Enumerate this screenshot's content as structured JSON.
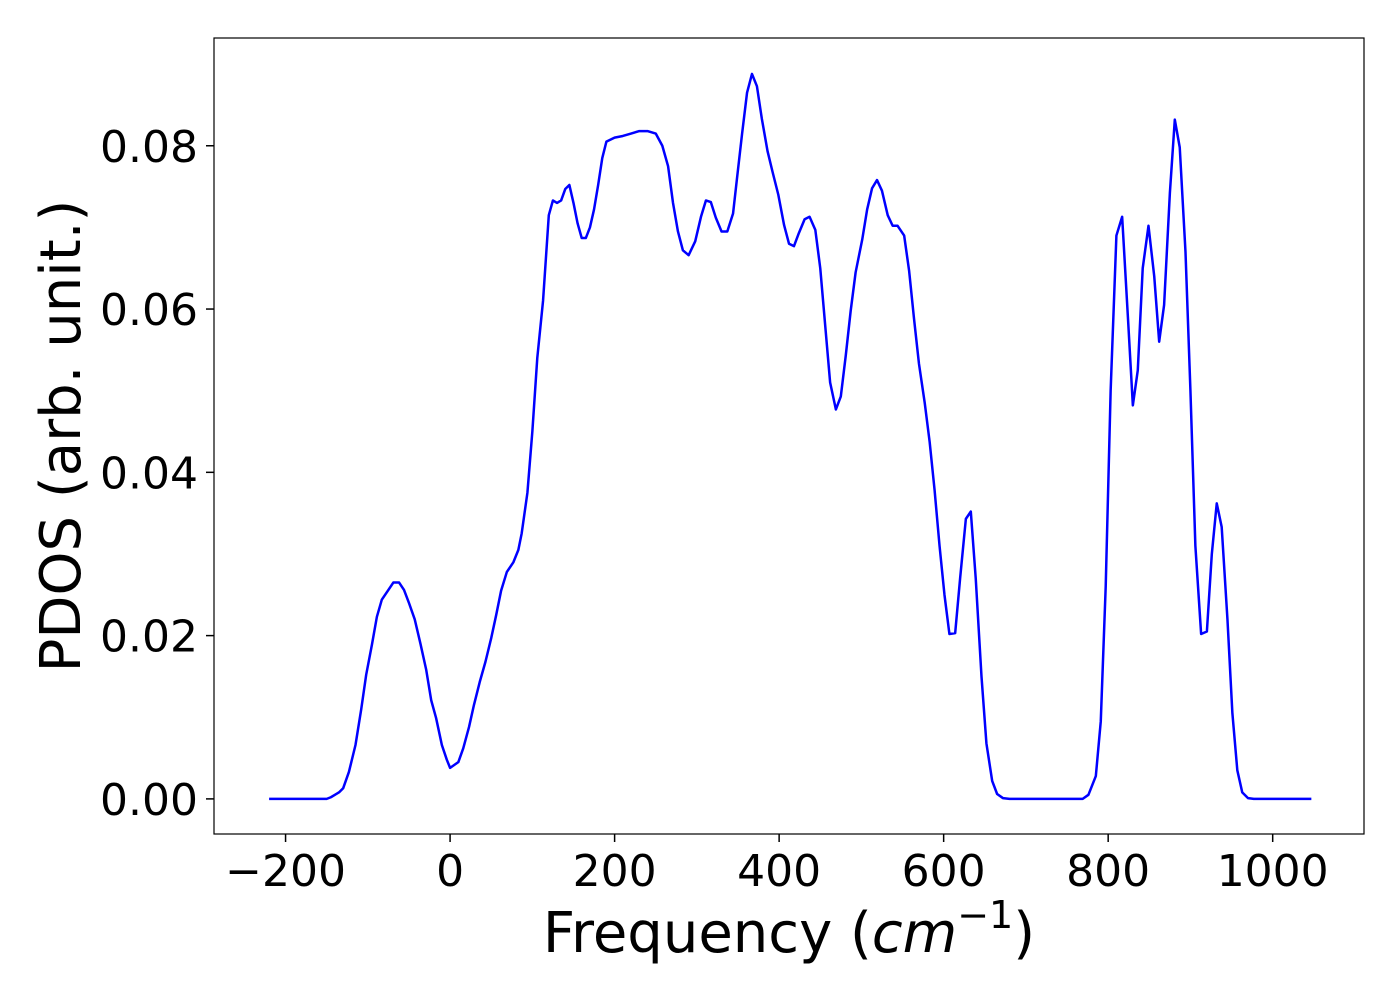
{
  "chart_data": {
    "type": "line",
    "xlabel": [
      "Frequency (",
      "cm",
      "−1",
      ")"
    ],
    "ylabel": "PDOS (arb. unit.)",
    "xlim": [
      -287,
      1111
    ],
    "ylim": [
      -0.0043,
      0.0932
    ],
    "xticks": [
      {
        "value": -200,
        "label": "−200"
      },
      0,
      200,
      400,
      600,
      800,
      1000
    ],
    "yticks": [
      {
        "value": 0,
        "label": "0.00"
      },
      0.02,
      0.04,
      0.06,
      0.08
    ],
    "grid": false,
    "series": [
      {
        "color": "#0000ff",
        "x": [
          -220,
          -150,
          -145,
          -140,
          -135,
          -130,
          -123,
          -115,
          -108,
          -102,
          -95,
          -89,
          -83,
          -75,
          -69,
          -62,
          -56,
          -50,
          -43,
          -36,
          -29,
          -23,
          -17,
          -10,
          -4,
          0,
          10,
          16,
          23,
          29,
          36,
          43,
          50,
          56,
          62,
          69,
          77,
          83,
          87,
          94,
          100,
          106,
          113,
          115,
          120,
          125,
          130,
          135,
          140,
          145,
          150,
          155,
          160,
          165,
          170,
          175,
          180,
          185,
          190,
          200,
          210,
          220,
          230,
          240,
          250,
          258,
          265,
          271,
          277,
          283,
          290,
          298,
          305,
          311,
          317,
          323,
          330,
          337,
          344,
          349,
          355,
          361,
          367,
          373,
          379,
          386,
          392,
          399,
          406,
          412,
          418,
          424,
          431,
          437,
          444,
          450,
          456,
          462,
          469,
          475,
          481,
          487,
          493,
          501,
          507,
          513,
          519,
          525,
          532,
          538,
          544,
          552,
          558,
          564,
          570,
          577,
          583,
          589,
          595,
          601,
          607,
          614,
          620,
          627,
          633,
          639,
          646,
          652,
          659,
          665,
          672,
          680,
          769,
          776,
          785,
          791,
          797,
          803,
          810,
          817,
          824,
          830,
          836,
          842,
          849,
          856,
          862,
          868,
          875,
          881,
          887,
          894,
          900,
          906,
          913,
          920,
          926,
          932,
          938,
          945,
          951,
          957,
          963,
          970,
          977,
          1047
        ],
        "values": [
          0,
          0,
          0.0002,
          0.0005,
          0.0008,
          0.0013,
          0.0033,
          0.0066,
          0.011,
          0.0152,
          0.0189,
          0.0223,
          0.0244,
          0.0256,
          0.0265,
          0.0265,
          0.0256,
          0.024,
          0.022,
          0.019,
          0.0158,
          0.0121,
          0.0099,
          0.0066,
          0.0048,
          0.0038,
          0.0045,
          0.0062,
          0.0088,
          0.0115,
          0.0143,
          0.0168,
          0.0197,
          0.0225,
          0.0255,
          0.0278,
          0.029,
          0.0305,
          0.0325,
          0.0375,
          0.045,
          0.054,
          0.061,
          0.064,
          0.0715,
          0.0733,
          0.073,
          0.0733,
          0.0747,
          0.0752,
          0.073,
          0.0705,
          0.0687,
          0.0687,
          0.07,
          0.0722,
          0.0752,
          0.0785,
          0.0805,
          0.081,
          0.0812,
          0.0815,
          0.0818,
          0.0818,
          0.0815,
          0.08,
          0.0775,
          0.073,
          0.0695,
          0.0672,
          0.0666,
          0.0683,
          0.0713,
          0.0733,
          0.0731,
          0.0712,
          0.0695,
          0.0695,
          0.0717,
          0.0762,
          0.0815,
          0.0865,
          0.0888,
          0.0873,
          0.0833,
          0.0793,
          0.0768,
          0.074,
          0.0703,
          0.068,
          0.0677,
          0.0693,
          0.071,
          0.0713,
          0.0697,
          0.065,
          0.058,
          0.051,
          0.0477,
          0.0493,
          0.0543,
          0.0598,
          0.0645,
          0.0685,
          0.0722,
          0.0748,
          0.0758,
          0.0745,
          0.0715,
          0.0702,
          0.0702,
          0.069,
          0.0647,
          0.0588,
          0.0533,
          0.0485,
          0.0437,
          0.0378,
          0.031,
          0.025,
          0.0202,
          0.0203,
          0.027,
          0.0343,
          0.0352,
          0.027,
          0.015,
          0.0068,
          0.0022,
          0.0006,
          0.0001,
          0,
          0,
          0.0005,
          0.0028,
          0.0095,
          0.026,
          0.05,
          0.069,
          0.0713,
          0.059,
          0.0482,
          0.0525,
          0.065,
          0.0702,
          0.064,
          0.056,
          0.0605,
          0.0742,
          0.0832,
          0.0798,
          0.067,
          0.05,
          0.031,
          0.0202,
          0.0205,
          0.03,
          0.0362,
          0.0333,
          0.022,
          0.0105,
          0.0035,
          0.0008,
          0.0001,
          0,
          0
        ]
      }
    ]
  }
}
